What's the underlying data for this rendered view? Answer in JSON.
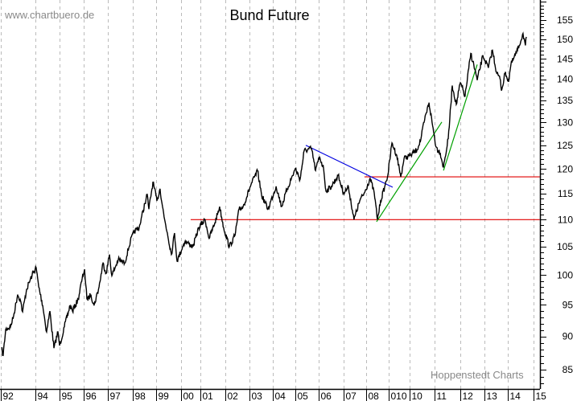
{
  "chart_data": {
    "type": "line",
    "title": "Bund Future",
    "watermark_top": "www.chartbuero.de",
    "watermark_bottom": "Hoppenstedt Charts",
    "y_scale": "log",
    "ylim": [
      82.2,
      160.4
    ],
    "xlim": [
      1992.5,
      2015.25
    ],
    "grid": {
      "vertical_dashed": true,
      "horizontal": false
    },
    "colors": {
      "price": "#000000",
      "support": "#e00000",
      "downtrend": "#0000e0",
      "uptrend": "#00a000",
      "grid": "#bbbbbb"
    },
    "y_ticks": [
      85,
      90,
      95,
      100,
      105,
      110,
      115,
      120,
      125,
      130,
      135,
      140,
      145,
      150,
      155
    ],
    "x_ticks": [
      {
        "label": "92",
        "at": 1992.54
      },
      {
        "label": "94",
        "at": 1994.0
      },
      {
        "label": "95",
        "at": 1995.02
      },
      {
        "label": "96",
        "at": 1996.03
      },
      {
        "label": "97",
        "at": 1997.05
      },
      {
        "label": "98",
        "at": 1998.1
      },
      {
        "label": "99",
        "at": 1999.08
      },
      {
        "label": "00",
        "at": 2000.14
      },
      {
        "label": "01",
        "at": 2000.95
      },
      {
        "label": "02",
        "at": 2002.0
      },
      {
        "label": "03",
        "at": 2003.02
      },
      {
        "label": "04",
        "at": 2004.0
      },
      {
        "label": "05",
        "at": 2004.95
      },
      {
        "label": "06",
        "at": 2005.93
      },
      {
        "label": "07",
        "at": 2006.98
      },
      {
        "label": "08",
        "at": 2007.93
      },
      {
        "label": "010",
        "at": 2008.88
      },
      {
        "label": "10",
        "at": 2009.76
      },
      {
        "label": "11",
        "at": 2010.81
      },
      {
        "label": "12",
        "at": 2011.9
      },
      {
        "label": "13",
        "at": 2012.92
      },
      {
        "label": "14",
        "at": 2013.9
      },
      {
        "label": "15",
        "at": 2014.98
      }
    ],
    "series": [
      {
        "x": [
          1992.57,
          1992.64,
          1992.75,
          1992.95,
          1993.08,
          1993.25,
          1993.36,
          1993.46,
          1993.63,
          1993.86,
          1994.03,
          1994.14,
          1994.31,
          1994.47,
          1994.61,
          1994.78,
          1994.95,
          1995.02,
          1995.22,
          1995.46,
          1995.56,
          1995.8,
          1995.97,
          1996.07,
          1996.17,
          1996.34,
          1996.47,
          1996.68,
          1996.85,
          1996.98,
          1997.12,
          1997.22,
          1997.49,
          1997.76,
          1998.0,
          1998.17,
          1998.37,
          1998.61,
          1998.71,
          1998.78,
          1998.95,
          1999.12,
          1999.25,
          1999.42,
          1999.56,
          1999.73,
          1999.86,
          1999.97,
          2000.2,
          2000.31,
          2000.64,
          2000.88,
          2001.15,
          2001.32,
          2001.56,
          2001.76,
          2001.93,
          2002.17,
          2002.41,
          2002.58,
          2002.75,
          2003.08,
          2003.36,
          2003.53,
          2003.8,
          2004.14,
          2004.37,
          2004.61,
          2004.95,
          2005.15,
          2005.32,
          2005.63,
          2005.8,
          2005.97,
          2006.14,
          2006.24,
          2006.47,
          2006.75,
          2006.98,
          2007.19,
          2007.42,
          2007.66,
          2007.86,
          2008.1,
          2008.27,
          2008.41,
          2008.54,
          2008.71,
          2008.85,
          2009.02,
          2009.22,
          2009.39,
          2009.53,
          2009.8,
          2010.07,
          2010.24,
          2010.37,
          2010.58,
          2010.71,
          2010.88,
          2011.05,
          2011.19,
          2011.39,
          2011.56,
          2011.73,
          2011.9,
          2012.1,
          2012.34,
          2012.51,
          2012.61,
          2012.85,
          2013.08,
          2013.25,
          2013.42,
          2013.59,
          2013.63,
          2013.8,
          2013.93,
          2014.03,
          2014.31,
          2014.54,
          2014.64,
          2014.68
        ],
        "y": [
          88.2,
          87.1,
          91.1,
          91.5,
          93.2,
          96.7,
          95.9,
          93.9,
          97.6,
          100.0,
          101.3,
          98.0,
          94.9,
          90.7,
          94.0,
          88.2,
          90.7,
          88.6,
          91.5,
          94.9,
          94.0,
          95.9,
          99.4,
          101.0,
          95.9,
          96.7,
          94.9,
          98.0,
          102.1,
          100.3,
          103.6,
          99.9,
          102.7,
          102.1,
          106.0,
          107.8,
          108.5,
          113.1,
          114.9,
          112.0,
          117.3,
          113.6,
          116.0,
          110.5,
          107.5,
          103.6,
          107.5,
          102.4,
          105.0,
          106.0,
          105.0,
          108.5,
          110.0,
          106.5,
          109.4,
          112.5,
          108.5,
          105.0,
          107.1,
          112.0,
          112.5,
          116.8,
          119.6,
          114.7,
          112.0,
          116.5,
          112.5,
          116.0,
          120.1,
          117.9,
          123.8,
          124.3,
          119.7,
          122.6,
          120.1,
          115.5,
          116.5,
          118.7,
          115.2,
          116.3,
          110.0,
          113.6,
          115.2,
          118.1,
          115.2,
          110.0,
          113.6,
          116.3,
          118.9,
          125.5,
          122.9,
          118.4,
          122.2,
          122.9,
          124.0,
          126.4,
          130.0,
          134.5,
          130.0,
          124.6,
          123.4,
          120.4,
          126.4,
          138.5,
          134.1,
          139.2,
          136.0,
          146.4,
          142.4,
          139.8,
          145.8,
          142.8,
          147.2,
          141.8,
          139.8,
          137.3,
          141.8,
          139.4,
          143.6,
          147.2,
          151.5,
          148.4,
          150.6
        ]
      }
    ],
    "lines": [
      {
        "kind": "support",
        "color": "#e00000",
        "from": [
          2000.54,
          110.0
        ],
        "to": [
          2015.25,
          110.0
        ]
      },
      {
        "kind": "support",
        "color": "#e00000",
        "from": [
          2007.86,
          118.4
        ],
        "to": [
          2015.25,
          118.4
        ]
      },
      {
        "kind": "downtrend",
        "color": "#0000e0",
        "from": [
          2005.39,
          125.0
        ],
        "to": [
          2009.05,
          116.3
        ]
      },
      {
        "kind": "uptrend",
        "color": "#00a000",
        "from": [
          2008.37,
          109.6
        ],
        "to": [
          2011.12,
          130.1
        ]
      },
      {
        "kind": "uptrend",
        "color": "#00a000",
        "from": [
          2011.19,
          119.7
        ],
        "to": [
          2012.61,
          143.6
        ]
      }
    ]
  }
}
